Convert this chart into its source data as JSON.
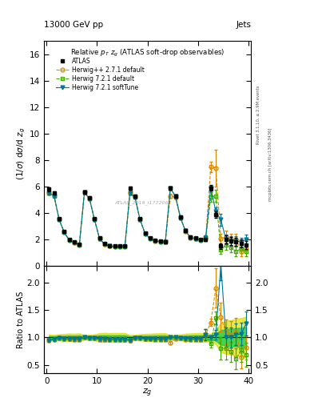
{
  "title_top": "13000 GeV pp",
  "title_right": "Jets",
  "plot_title": "Relative $p_T$ $z_g$ (ATLAS soft-drop observables)",
  "ylabel_main": "$(1/\\sigma)$ d$\\sigma$/d $z_g$",
  "ylabel_ratio": "Ratio to ATLAS",
  "xlabel": "$z_g$",
  "watermark": "ATLAS_2019_I1772062",
  "right_label1": "Rivet 3.1.10, ≥ 2.9M events",
  "right_label2": "mcplots.cern.ch [arXiv:1306.3436]",
  "ylim_main": [
    0,
    17
  ],
  "ylim_ratio": [
    0.35,
    2.3
  ],
  "xlim": [
    -0.5,
    40.5
  ],
  "atlas_x": [
    0.5,
    1.5,
    2.5,
    3.5,
    4.5,
    5.5,
    6.5,
    7.5,
    8.5,
    9.5,
    10.5,
    11.5,
    12.5,
    13.5,
    14.5,
    15.5,
    16.5,
    17.5,
    18.5,
    19.5,
    20.5,
    21.5,
    22.5,
    23.5,
    24.5,
    25.5,
    26.5,
    27.5,
    28.5,
    29.5,
    30.5,
    31.5,
    32.5,
    33.5,
    34.5,
    35.5,
    36.5,
    37.5,
    38.5,
    39.5
  ],
  "atlas_y": [
    5.8,
    5.5,
    3.55,
    2.6,
    2.0,
    1.8,
    1.65,
    5.55,
    5.15,
    3.55,
    2.1,
    1.7,
    1.55,
    1.5,
    1.5,
    1.5,
    5.85,
    5.25,
    3.55,
    2.5,
    2.1,
    1.95,
    1.9,
    1.85,
    5.85,
    5.3,
    3.7,
    2.7,
    2.2,
    2.1,
    2.0,
    2.0,
    5.9,
    3.9,
    1.5,
    2.0,
    1.9,
    1.8,
    1.7,
    1.6
  ],
  "atlas_yerr": [
    0.15,
    0.12,
    0.1,
    0.08,
    0.07,
    0.06,
    0.06,
    0.12,
    0.12,
    0.1,
    0.08,
    0.07,
    0.06,
    0.06,
    0.06,
    0.06,
    0.12,
    0.12,
    0.1,
    0.08,
    0.07,
    0.07,
    0.07,
    0.07,
    0.12,
    0.12,
    0.1,
    0.09,
    0.08,
    0.08,
    0.08,
    0.08,
    0.2,
    0.25,
    0.2,
    0.3,
    0.3,
    0.3,
    0.3,
    0.3
  ],
  "herwig_pp_x": [
    0.5,
    1.5,
    2.5,
    3.5,
    4.5,
    5.5,
    6.5,
    7.5,
    8.5,
    9.5,
    10.5,
    11.5,
    12.5,
    13.5,
    14.5,
    15.5,
    16.5,
    17.5,
    18.5,
    19.5,
    20.5,
    21.5,
    22.5,
    23.5,
    24.5,
    25.5,
    26.5,
    27.5,
    28.5,
    29.5,
    30.5,
    31.5,
    32.5,
    33.5,
    34.5,
    35.5,
    36.5,
    37.5,
    38.5,
    39.5
  ],
  "herwig_pp_y": [
    5.5,
    5.3,
    3.5,
    2.55,
    1.95,
    1.75,
    1.6,
    5.55,
    5.1,
    3.5,
    2.05,
    1.65,
    1.5,
    1.45,
    1.45,
    1.45,
    5.5,
    5.2,
    3.5,
    2.45,
    2.05,
    1.9,
    1.85,
    1.8,
    5.3,
    5.2,
    3.65,
    2.6,
    2.15,
    2.05,
    1.95,
    2.1,
    7.5,
    7.4,
    2.05,
    2.2,
    2.0,
    2.0,
    1.1,
    1.3
  ],
  "herwig_pp_yerr": [
    0.12,
    0.1,
    0.09,
    0.08,
    0.07,
    0.06,
    0.06,
    0.12,
    0.12,
    0.1,
    0.08,
    0.07,
    0.06,
    0.06,
    0.06,
    0.06,
    0.12,
    0.12,
    0.1,
    0.08,
    0.07,
    0.07,
    0.07,
    0.07,
    0.15,
    0.15,
    0.12,
    0.1,
    0.09,
    0.09,
    0.09,
    0.2,
    0.4,
    1.4,
    0.4,
    0.45,
    0.45,
    0.45,
    0.35,
    0.35
  ],
  "herwig721_x": [
    0.5,
    1.5,
    2.5,
    3.5,
    4.5,
    5.5,
    6.5,
    7.5,
    8.5,
    9.5,
    10.5,
    11.5,
    12.5,
    13.5,
    14.5,
    15.5,
    16.5,
    17.5,
    18.5,
    19.5,
    20.5,
    21.5,
    22.5,
    23.5,
    24.5,
    25.5,
    26.5,
    27.5,
    28.5,
    29.5,
    30.5,
    31.5,
    32.5,
    33.5,
    34.5,
    35.5,
    36.5,
    37.5,
    38.5,
    39.5
  ],
  "herwig721_y": [
    5.5,
    5.3,
    3.5,
    2.55,
    1.95,
    1.75,
    1.6,
    5.55,
    5.1,
    3.5,
    2.05,
    1.65,
    1.5,
    1.45,
    1.45,
    1.45,
    5.5,
    5.2,
    3.5,
    2.45,
    2.05,
    1.9,
    1.85,
    1.8,
    5.85,
    5.3,
    3.65,
    2.65,
    2.15,
    2.05,
    1.95,
    2.1,
    5.2,
    5.3,
    1.2,
    1.6,
    1.4,
    1.1,
    1.3,
    1.1
  ],
  "herwig721_yerr": [
    0.12,
    0.1,
    0.09,
    0.08,
    0.07,
    0.06,
    0.06,
    0.12,
    0.12,
    0.1,
    0.08,
    0.07,
    0.06,
    0.06,
    0.06,
    0.06,
    0.12,
    0.12,
    0.1,
    0.08,
    0.07,
    0.07,
    0.07,
    0.07,
    0.12,
    0.12,
    0.11,
    0.1,
    0.09,
    0.09,
    0.09,
    0.2,
    0.35,
    0.45,
    0.3,
    0.4,
    0.35,
    0.35,
    0.35,
    0.35
  ],
  "herwig721st_x": [
    0.5,
    1.5,
    2.5,
    3.5,
    4.5,
    5.5,
    6.5,
    7.5,
    8.5,
    9.5,
    10.5,
    11.5,
    12.5,
    13.5,
    14.5,
    15.5,
    16.5,
    17.5,
    18.5,
    19.5,
    20.5,
    21.5,
    22.5,
    23.5,
    24.5,
    25.5,
    26.5,
    27.5,
    28.5,
    29.5,
    30.5,
    31.5,
    32.5,
    33.5,
    34.5,
    35.5,
    36.5,
    37.5,
    38.5,
    39.5
  ],
  "herwig721st_y": [
    5.5,
    5.3,
    3.5,
    2.55,
    1.95,
    1.75,
    1.6,
    5.55,
    5.1,
    3.5,
    2.05,
    1.65,
    1.5,
    1.45,
    1.45,
    1.45,
    5.5,
    5.2,
    3.5,
    2.45,
    2.05,
    1.9,
    1.85,
    1.8,
    5.85,
    5.3,
    3.65,
    2.65,
    2.15,
    2.05,
    1.95,
    2.1,
    5.9,
    4.1,
    3.5,
    2.0,
    1.9,
    1.9,
    1.8,
    2.0
  ],
  "herwig721st_yerr": [
    0.12,
    0.1,
    0.09,
    0.08,
    0.07,
    0.06,
    0.06,
    0.12,
    0.12,
    0.1,
    0.08,
    0.07,
    0.06,
    0.06,
    0.06,
    0.06,
    0.12,
    0.12,
    0.1,
    0.08,
    0.07,
    0.07,
    0.07,
    0.07,
    0.12,
    0.12,
    0.11,
    0.1,
    0.09,
    0.09,
    0.09,
    0.2,
    0.18,
    0.35,
    0.45,
    0.35,
    0.35,
    0.35,
    0.35,
    0.35
  ],
  "atlas_color": "#000000",
  "herwig_pp_color": "#dd8800",
  "herwig721_color": "#44aa00",
  "herwig721st_color": "#007799",
  "band_inner_color": "#00cc55",
  "band_outer_color": "#dddd00",
  "yticks_main": [
    0,
    2,
    4,
    6,
    8,
    10,
    12,
    14,
    16
  ],
  "yticks_ratio": [
    0.5,
    1.0,
    1.5,
    2.0
  ]
}
